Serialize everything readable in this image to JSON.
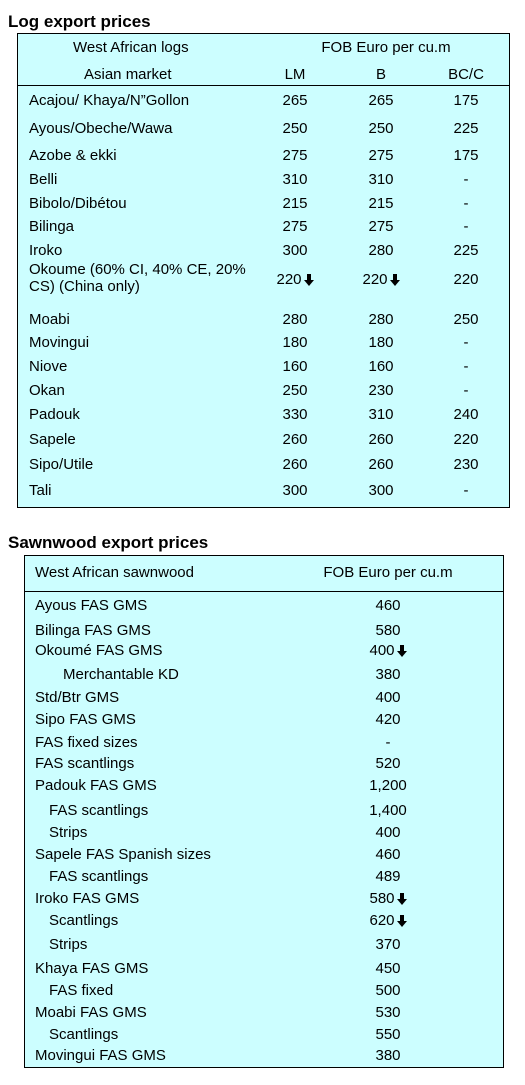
{
  "log_section": {
    "title": "Log export prices",
    "header": {
      "col1_line1": "West African logs",
      "col1_line2": "Asian market",
      "price_header": "FOB Euro per cu.m",
      "grades": [
        "LM",
        "B",
        "BC/C"
      ]
    },
    "rows": [
      {
        "name": "Acajou/ Khaya/N”Gollon",
        "lm": "265",
        "b": "265",
        "bcc": "175"
      },
      {
        "name": "Ayous/Obeche/Wawa",
        "lm": "250",
        "b": "250",
        "bcc": "225"
      },
      {
        "name": "Azobe & ekki",
        "lm": "275",
        "b": "275",
        "bcc": "175"
      },
      {
        "name": "Belli",
        "lm": "310",
        "b": "310",
        "bcc": "-"
      },
      {
        "name": "Bibolo/Dibétou",
        "lm": "215",
        "b": "215",
        "bcc": "-"
      },
      {
        "name": "Bilinga",
        "lm": "275",
        "b": "275",
        "bcc": "-"
      },
      {
        "name": "Iroko",
        "lm": "300",
        "b": "280",
        "bcc": "225"
      },
      {
        "name": "Okoume (60% CI, 40% CE, 20% CS) (China only)",
        "lm": "220",
        "b": "220",
        "bcc": "220"
      },
      {
        "name": "Moabi",
        "lm": "280",
        "b": "280",
        "bcc": "250"
      },
      {
        "name": "Movingui",
        "lm": "180",
        "b": "180",
        "bcc": "-"
      },
      {
        "name": "Niove",
        "lm": "160",
        "b": "160",
        "bcc": "-"
      },
      {
        "name": "Okan",
        "lm": "250",
        "b": "230",
        "bcc": "-"
      },
      {
        "name": "Padouk",
        "lm": "330",
        "b": "310",
        "bcc": "240"
      },
      {
        "name": "Sapele",
        "lm": "260",
        "b": "260",
        "bcc": "220"
      },
      {
        "name": "Sipo/Utile",
        "lm": "260",
        "b": "260",
        "bcc": "230"
      },
      {
        "name": "Tali",
        "lm": "300",
        "b": "300",
        "bcc": "-"
      }
    ]
  },
  "sawn_section": {
    "title": "Sawnwood export prices",
    "header": {
      "col1": "West African sawnwood",
      "price_header": "FOB Euro per cu.m"
    },
    "rows": [
      {
        "name": "Ayous FAS GMS",
        "price": "460"
      },
      {
        "name": "Bilinga FAS GMS",
        "price": "580"
      },
      {
        "name": "Okoumé FAS GMS",
        "price": "400"
      },
      {
        "name": "Merchantable KD",
        "price": "380"
      },
      {
        "name": "Std/Btr GMS",
        "price": "400"
      },
      {
        "name": "Sipo FAS GMS",
        "price": "420"
      },
      {
        "name": "FAS fixed sizes",
        "price": "-"
      },
      {
        "name": "FAS scantlings",
        "price": "520"
      },
      {
        "name": "Padouk FAS GMS",
        "price": "1,200"
      },
      {
        "name": "FAS scantlings",
        "price": "1,400"
      },
      {
        "name": "Strips",
        "price": "400"
      },
      {
        "name": "Sapele FAS Spanish sizes",
        "price": "460"
      },
      {
        "name": "FAS scantlings",
        "price": "489"
      },
      {
        "name": "Iroko FAS GMS",
        "price": "580"
      },
      {
        "name": "Scantlings",
        "price": "620"
      },
      {
        "name": "Strips",
        "price": "370"
      },
      {
        "name": "Khaya FAS GMS",
        "price": "450"
      },
      {
        "name": "FAS fixed",
        "price": "500"
      },
      {
        "name": "Moabi FAS GMS",
        "price": "530"
      },
      {
        "name": "Scantlings",
        "price": "550"
      },
      {
        "name": "Movingui FAS GMS",
        "price": "380"
      }
    ]
  }
}
